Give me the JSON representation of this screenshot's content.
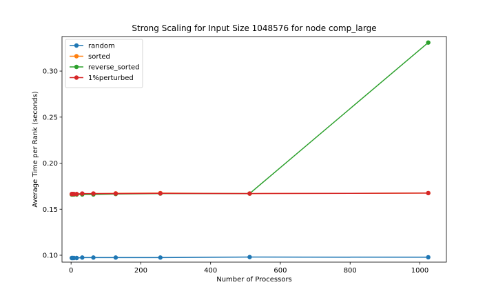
{
  "chart_data": {
    "type": "line",
    "title": "Strong Scaling for Input Size 1048576 for node comp_large",
    "xlabel": "Number of Processors",
    "ylabel": "Average Time per Rank (seconds)",
    "xlim": [
      -26,
      1076
    ],
    "ylim": [
      0.0925,
      0.3375
    ],
    "xticks": [
      0,
      200,
      400,
      600,
      800,
      1000
    ],
    "xtick_labels": [
      "0",
      "200",
      "400",
      "600",
      "800",
      "1000"
    ],
    "yticks": [
      0.1,
      0.15,
      0.2,
      0.25,
      0.3
    ],
    "ytick_labels": [
      "0.10",
      "0.15",
      "0.20",
      "0.25",
      "0.30"
    ],
    "grid": false,
    "legend_position": "top-left",
    "x": [
      2,
      4,
      8,
      16,
      32,
      64,
      128,
      256,
      512,
      1024
    ],
    "series": [
      {
        "name": "random",
        "color": "#1f77b4",
        "values": [
          0.097,
          0.097,
          0.097,
          0.097,
          0.0975,
          0.0975,
          0.0975,
          0.0975,
          0.098,
          0.0978
        ]
      },
      {
        "name": "sorted",
        "color": "#ff7f0e",
        "values": [
          0.166,
          0.166,
          0.166,
          0.166,
          0.1665,
          0.167,
          0.1672,
          0.1675,
          0.167,
          0.1675
        ]
      },
      {
        "name": "reverse_sorted",
        "color": "#2ca02c",
        "values": [
          0.166,
          0.166,
          0.166,
          0.166,
          0.166,
          0.166,
          0.1665,
          0.167,
          0.167,
          0.331
        ]
      },
      {
        "name": "1%perturbed",
        "color": "#d62728",
        "values": [
          0.1665,
          0.1665,
          0.1665,
          0.1665,
          0.167,
          0.167,
          0.167,
          0.1672,
          0.167,
          0.1675
        ]
      }
    ]
  }
}
